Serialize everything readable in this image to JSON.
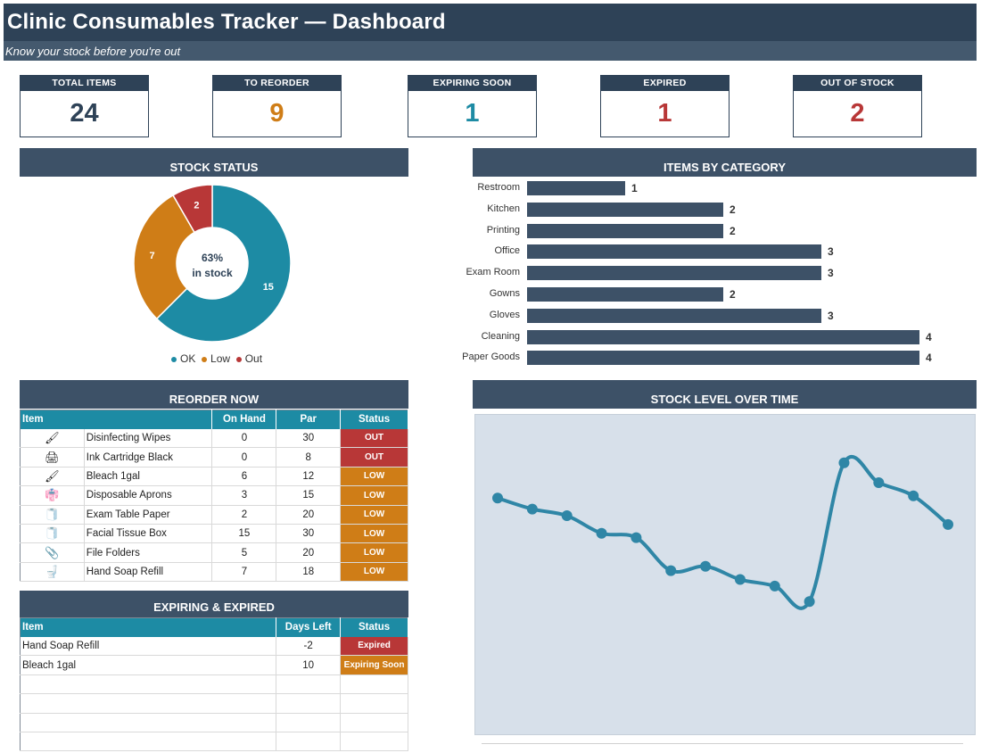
{
  "header": {
    "title": "Clinic Consumables Tracker — Dashboard",
    "subtitle": "Know your stock before you're out"
  },
  "kpis": [
    {
      "label": "TOTAL ITEMS",
      "value": "24",
      "color": "#2e4257"
    },
    {
      "label": "TO REORDER",
      "value": "9",
      "color": "#cf7d17"
    },
    {
      "label": "EXPIRING SOON",
      "value": "1",
      "color": "#1d8ba4"
    },
    {
      "label": "EXPIRED",
      "value": "1",
      "color": "#b83737"
    },
    {
      "label": "OUT OF STOCK",
      "value": "2",
      "color": "#b83737"
    }
  ],
  "stock_status": {
    "title": "STOCK STATUS",
    "center_pct": "63%",
    "center_label": "in stock",
    "legend": [
      {
        "label": "OK",
        "color": "#1d8ba4"
      },
      {
        "label": "Low",
        "color": "#cf7d17"
      },
      {
        "label": "Out",
        "color": "#b83737"
      }
    ]
  },
  "items_by_category": {
    "title": "ITEMS BY CATEGORY"
  },
  "reorder": {
    "title": "REORDER NOW",
    "columns": [
      "Item",
      "On Hand",
      "Par",
      "Status"
    ],
    "rows": [
      {
        "icon": "brush-icon",
        "item": "Disinfecting Wipes",
        "on_hand": "0",
        "par": "30",
        "status": "OUT"
      },
      {
        "icon": "printer-icon",
        "item": "Ink Cartridge Black",
        "on_hand": "0",
        "par": "8",
        "status": "OUT"
      },
      {
        "icon": "brush-icon",
        "item": "Bleach 1gal",
        "on_hand": "6",
        "par": "12",
        "status": "LOW"
      },
      {
        "icon": "apron-icon",
        "item": "Disposable Aprons",
        "on_hand": "3",
        "par": "15",
        "status": "LOW"
      },
      {
        "icon": "paper-roll-icon",
        "item": "Exam Table Paper",
        "on_hand": "2",
        "par": "20",
        "status": "LOW"
      },
      {
        "icon": "paper-roll-icon",
        "item": "Facial Tissue Box",
        "on_hand": "15",
        "par": "30",
        "status": "LOW"
      },
      {
        "icon": "paperclip-icon",
        "item": "File Folders",
        "on_hand": "5",
        "par": "20",
        "status": "LOW"
      },
      {
        "icon": "toilet-icon",
        "item": "Hand Soap Refill",
        "on_hand": "7",
        "par": "18",
        "status": "LOW"
      }
    ]
  },
  "expiring": {
    "title": "EXPIRING & EXPIRED",
    "columns": [
      "Item",
      "Days Left",
      "Status"
    ],
    "rows": [
      {
        "item": "Hand Soap Refill",
        "days_left": "-2",
        "status": "Expired"
      },
      {
        "item": "Bleach 1gal",
        "days_left": "10",
        "status": "Expiring Soon"
      }
    ]
  },
  "stock_over_time": {
    "title": "STOCK LEVEL OVER TIME"
  },
  "chart_data": [
    {
      "type": "pie",
      "title": "STOCK STATUS",
      "categories": [
        "OK",
        "Low",
        "Out"
      ],
      "values": [
        15,
        7,
        2
      ],
      "colors": [
        "#1d8ba4",
        "#cf7d17",
        "#b83737"
      ],
      "legend": "bottom"
    },
    {
      "type": "bar",
      "orientation": "horizontal",
      "title": "ITEMS BY CATEGORY",
      "categories": [
        "Restroom",
        "Kitchen",
        "Printing",
        "Office",
        "Exam Room",
        "Gowns",
        "Gloves",
        "Cleaning",
        "Paper Goods"
      ],
      "values": [
        1,
        2,
        2,
        3,
        3,
        2,
        3,
        4,
        4
      ],
      "xlim": [
        0,
        4
      ],
      "color": "#3d5167"
    },
    {
      "type": "line",
      "title": "STOCK LEVEL OVER TIME",
      "values": [
        143,
        138,
        135,
        127,
        125,
        110,
        112,
        106,
        103,
        96,
        159,
        150,
        144,
        131
      ],
      "ylim": [
        90,
        165
      ],
      "color": "#2f86a6",
      "grid": false
    }
  ]
}
